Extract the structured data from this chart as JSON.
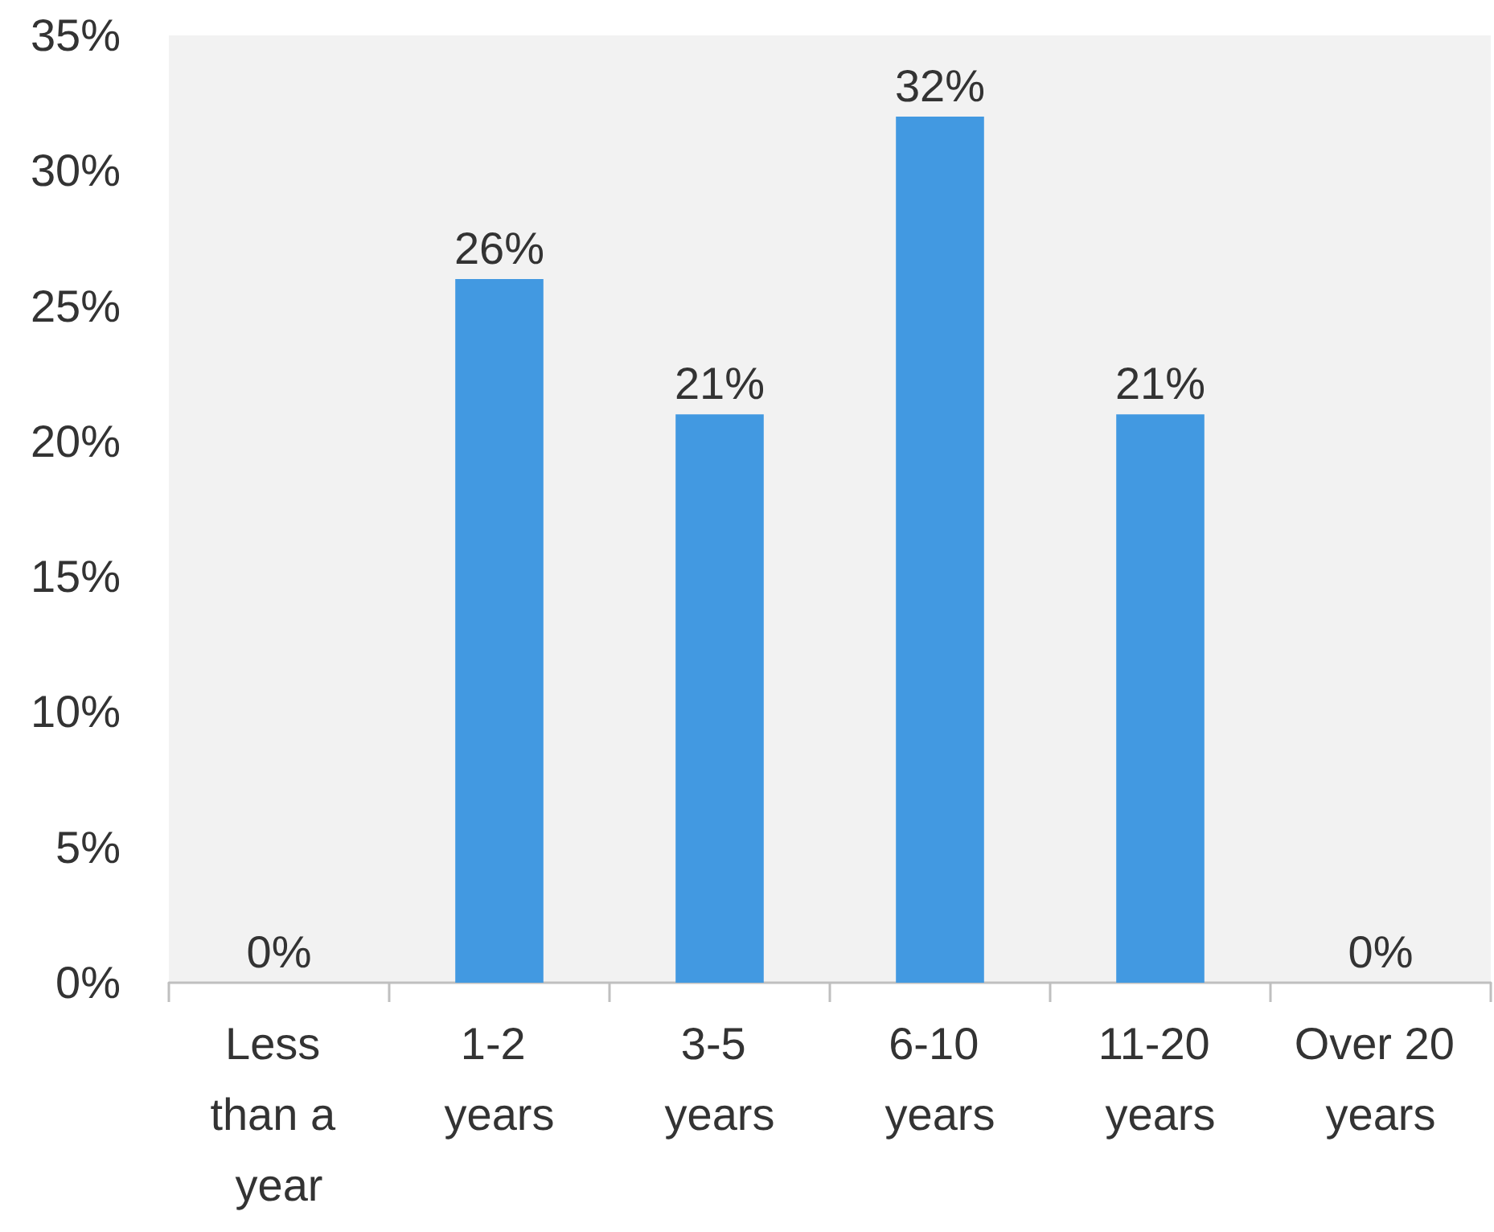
{
  "chart_data": {
    "type": "bar",
    "categories": [
      "Less than a year",
      "1-2 years",
      "3-5 years",
      "6-10 years",
      "11-20 years",
      "Over 20 years"
    ],
    "values": [
      0,
      26,
      21,
      32,
      21,
      0
    ],
    "value_labels": [
      "0%",
      "26%",
      "21%",
      "32%",
      "21%",
      "0%"
    ],
    "color": "#4299e1",
    "ylim": [
      0,
      35
    ],
    "yticks": [
      {
        "value": 0,
        "label": "0%"
      },
      {
        "value": 5,
        "label": "5%"
      },
      {
        "value": 10,
        "label": "10%"
      },
      {
        "value": 15,
        "label": "15%"
      },
      {
        "value": 20,
        "label": "20%"
      },
      {
        "value": 25,
        "label": "25%"
      },
      {
        "value": 30,
        "label": "30%"
      },
      {
        "value": 35,
        "label": "35%"
      }
    ],
    "grid": false
  }
}
